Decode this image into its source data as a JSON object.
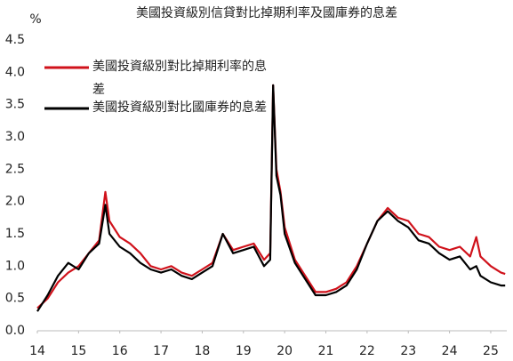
{
  "chart_data": {
    "type": "line",
    "title": "美國投資級別信貸對比掉期利率及國庫券的息差",
    "y_label": "%",
    "x": [
      14.0,
      14.25,
      14.5,
      14.75,
      15.0,
      15.25,
      15.5,
      15.65,
      15.75,
      16.0,
      16.25,
      16.5,
      16.75,
      17.0,
      17.25,
      17.5,
      17.75,
      18.0,
      18.25,
      18.5,
      18.75,
      19.0,
      19.25,
      19.5,
      19.65,
      19.72,
      19.8,
      19.9,
      20.0,
      20.25,
      20.5,
      20.75,
      21.0,
      21.25,
      21.5,
      21.75,
      22.0,
      22.25,
      22.5,
      22.75,
      23.0,
      23.25,
      23.5,
      23.75,
      24.0,
      24.25,
      24.5,
      24.65,
      24.75,
      25.0,
      25.25,
      25.35
    ],
    "series": [
      {
        "name": "美國投資級別對比掉期利率的息差",
        "color": "#d0121b",
        "values": [
          0.35,
          0.5,
          0.75,
          0.9,
          1.0,
          1.2,
          1.4,
          2.15,
          1.7,
          1.45,
          1.35,
          1.2,
          1.0,
          0.95,
          1.0,
          0.9,
          0.85,
          0.95,
          1.05,
          1.5,
          1.25,
          1.3,
          1.35,
          1.1,
          1.2,
          3.8,
          2.5,
          2.15,
          1.6,
          1.1,
          0.85,
          0.6,
          0.6,
          0.65,
          0.75,
          1.0,
          1.35,
          1.7,
          1.9,
          1.75,
          1.7,
          1.5,
          1.45,
          1.3,
          1.25,
          1.3,
          1.15,
          1.45,
          1.15,
          1.0,
          0.9,
          0.88
        ]
      },
      {
        "name": "美國投資級別對比國庫券的息差",
        "color": "#000000",
        "values": [
          0.3,
          0.55,
          0.85,
          1.05,
          0.95,
          1.2,
          1.35,
          1.95,
          1.5,
          1.3,
          1.2,
          1.05,
          0.95,
          0.9,
          0.95,
          0.85,
          0.8,
          0.9,
          1.0,
          1.5,
          1.2,
          1.25,
          1.3,
          1.0,
          1.1,
          3.8,
          2.4,
          2.1,
          1.5,
          1.05,
          0.8,
          0.55,
          0.55,
          0.6,
          0.7,
          0.95,
          1.35,
          1.7,
          1.85,
          1.7,
          1.6,
          1.4,
          1.35,
          1.2,
          1.1,
          1.15,
          0.95,
          1.0,
          0.85,
          0.75,
          0.7,
          0.7
        ]
      }
    ],
    "xlim": [
      14,
      25.4
    ],
    "xticks": [
      14,
      15,
      16,
      17,
      18,
      19,
      20,
      21,
      22,
      23,
      24,
      25
    ],
    "ylim": [
      0,
      4.5
    ],
    "yticks": [
      {
        "value": 0,
        "label": "0.0"
      },
      0.5,
      {
        "value": 1,
        "label": "1.0"
      },
      1.5,
      {
        "value": 2,
        "label": "2.0"
      },
      2.5,
      {
        "value": 3,
        "label": "3.0"
      },
      3.5,
      {
        "value": 4,
        "label": "4.0"
      },
      4.5
    ],
    "grid": false
  }
}
